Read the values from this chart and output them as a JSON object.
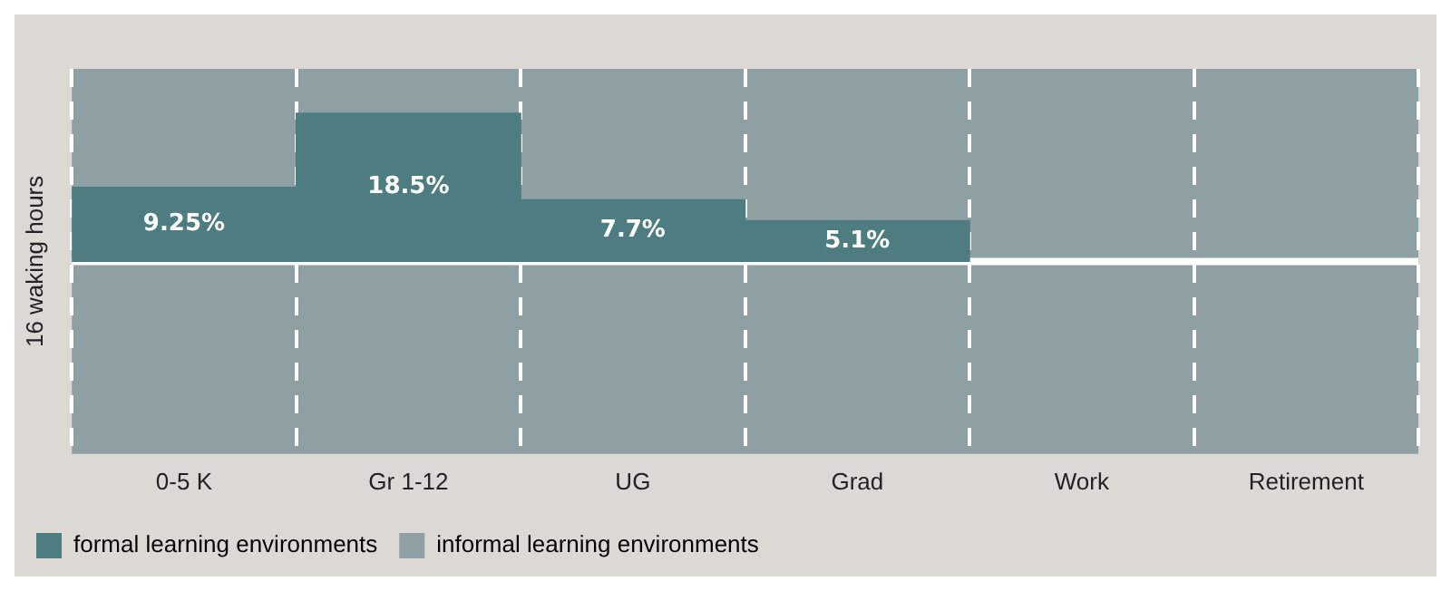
{
  "chart_data": {
    "type": "bar",
    "ylabel": "16 waking hours",
    "categories": [
      "0-5 K",
      "Gr 1-12",
      "UG",
      "Grad",
      "Work",
      "Retirement"
    ],
    "series": [
      {
        "name": "formal learning environments",
        "color": "#4d7c81",
        "values": [
          9.25,
          18.5,
          7.7,
          5.1,
          null,
          null
        ],
        "value_labels": [
          "9.25%",
          "18.5%",
          "7.7%",
          "5.1%",
          null,
          null
        ]
      }
    ],
    "ref_lines": [
      {
        "axis": "y",
        "value": 0,
        "color": "#ffffff"
      }
    ],
    "tick_labels": "x",
    "grid": "x",
    "line_style": "dashed",
    "legend": "bottom left",
    "bands": [
      {
        "axis": "x",
        "from": "0-5 K",
        "to": "Retirement",
        "label": "informal learning environments",
        "color": "#8fa0a5"
      }
    ]
  }
}
